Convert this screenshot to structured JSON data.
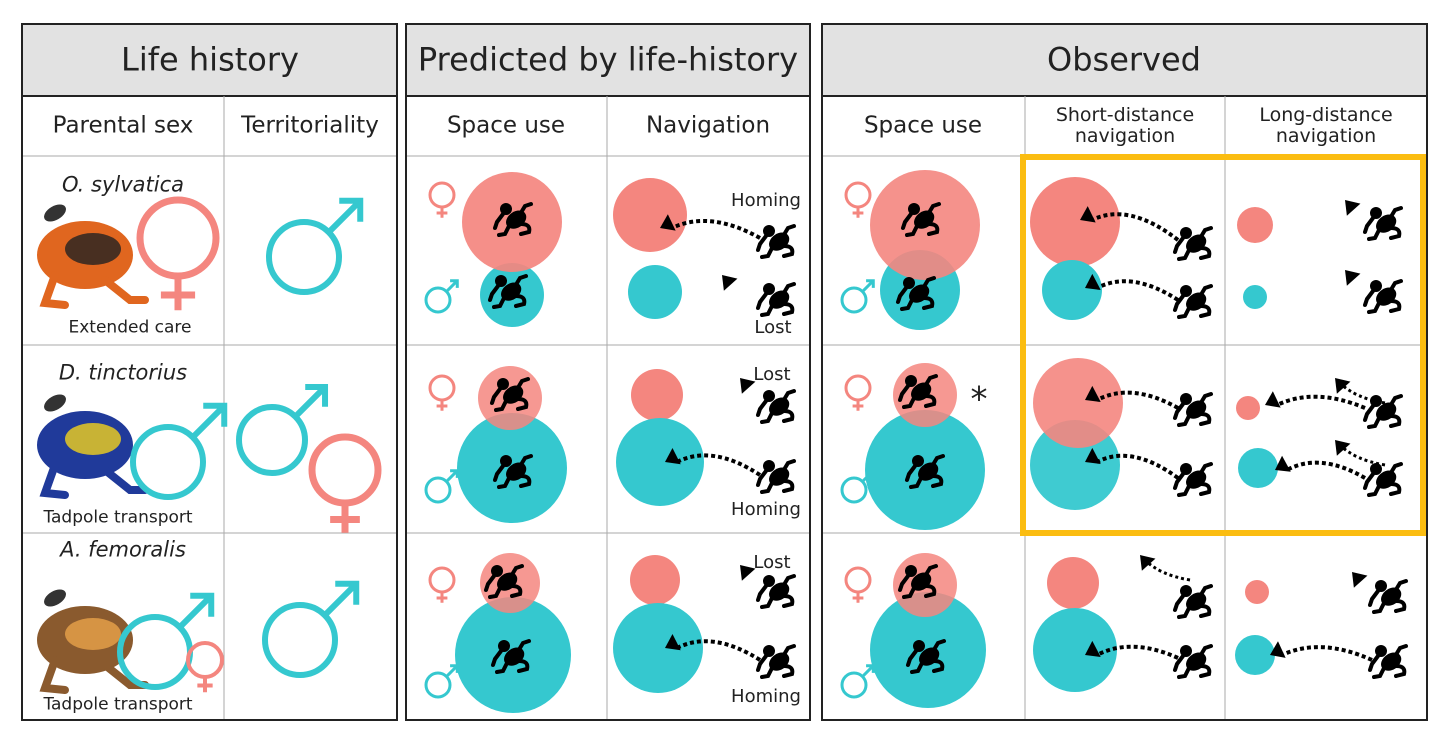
{
  "panels": [
    {
      "title": "Life history",
      "columns": [
        "Parental sex",
        "Territoriality"
      ],
      "rows": [
        {
          "species": "O. sylvatica",
          "caption": "Extended care"
        },
        {
          "species": "D. tinctorius",
          "caption": "Tadpole transport"
        },
        {
          "species": "A. femoralis",
          "caption": "Tadpole transport"
        }
      ]
    },
    {
      "title": "Predicted by life-history",
      "columns": [
        "Space use",
        "Navigation"
      ],
      "rows": [
        {
          "labels": [
            "Homing",
            "Lost"
          ]
        },
        {
          "labels": [
            "Lost",
            "Homing"
          ]
        },
        {
          "labels": [
            "Lost",
            "Homing"
          ]
        }
      ]
    },
    {
      "title": "Observed",
      "columns": [
        "Space use",
        "Short-distance navigation",
        "Long-distance navigation"
      ],
      "note": "*"
    }
  ]
}
